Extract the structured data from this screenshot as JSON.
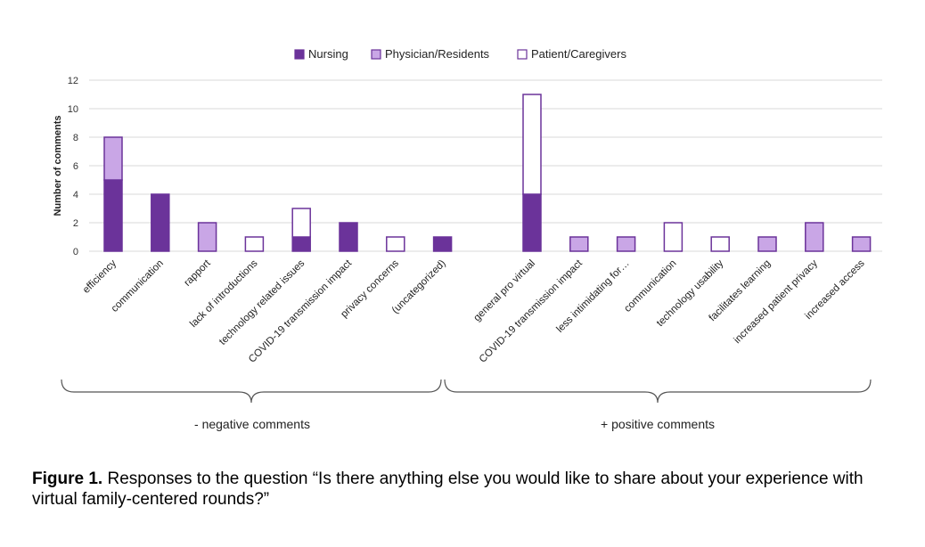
{
  "chart_data": {
    "type": "bar",
    "stacked": true,
    "ylabel": "Number of comments",
    "ylim": [
      0,
      12
    ],
    "yticks": [
      0,
      2,
      4,
      6,
      8,
      10,
      12
    ],
    "grid": true,
    "legend_position": "top-center",
    "series": [
      {
        "name": "Nursing",
        "color": "#6b339a",
        "fill": "solid"
      },
      {
        "name": "Physician/Residents",
        "color": "#c9a6e6",
        "fill": "light"
      },
      {
        "name": "Patient/Caregivers",
        "color": "#ffffff",
        "fill": "outline"
      }
    ],
    "groups": [
      {
        "label": "- negative comments",
        "categories": [
          "efficiency",
          "communication",
          "rapport",
          "lack of introductions",
          "technology related issues",
          "COVID-19 transmission impact",
          "privacy concerns",
          "(uncategorized)"
        ],
        "values": {
          "Nursing": [
            5,
            4,
            0,
            0,
            1,
            2,
            0,
            1
          ],
          "Physician/Residents": [
            3,
            0,
            2,
            0,
            0,
            0,
            0,
            0
          ],
          "Patient/Caregivers": [
            0,
            0,
            0,
            1,
            2,
            0,
            1,
            0
          ]
        }
      },
      {
        "label": "+ positive comments",
        "categories": [
          "general pro virtual",
          "COVID-19 transmission impact",
          "less intimidating for…",
          "communication",
          "technology usability",
          "facilitates learning",
          "increased patient privacy",
          "increased access"
        ],
        "values": {
          "Nursing": [
            4,
            0,
            0,
            0,
            0,
            0,
            0,
            0
          ],
          "Physician/Residents": [
            0,
            1,
            1,
            0,
            0,
            1,
            2,
            1
          ],
          "Patient/Caregivers": [
            7,
            0,
            0,
            2,
            1,
            0,
            0,
            0
          ]
        }
      }
    ],
    "outline_color": "#6b339a"
  },
  "caption": {
    "label": "Figure 1.",
    "text": " Responses to the question “Is there anything else you would like to share about your experience with virtual family-centered rounds?”"
  }
}
